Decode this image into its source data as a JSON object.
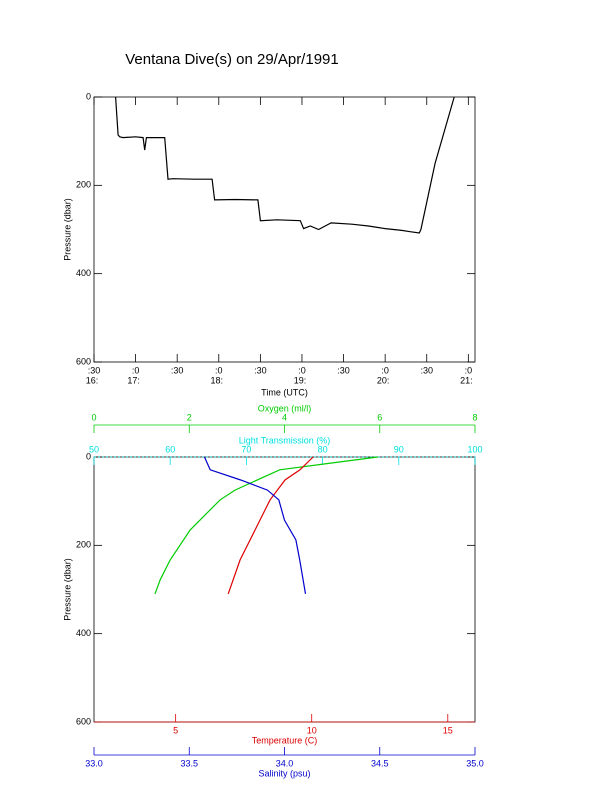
{
  "chart_data": [
    {
      "type": "line",
      "title": "Ventana Dive(s) on 29/Apr/1991",
      "xlabel": "Time (UTC)",
      "ylabel": "Pressure (dbar)",
      "xlim": [
        16.5,
        21.08
      ],
      "ylim": [
        0,
        600
      ],
      "y_reversed": true,
      "yticks": [
        0,
        200,
        400,
        600
      ],
      "xticks": [
        {
          "value": 16.5,
          "label": ":30",
          "hour": "16:"
        },
        {
          "value": 17,
          "label": ":0",
          "hour": "17:"
        },
        {
          "value": 17.5,
          "label": ":30"
        },
        {
          "value": 18,
          "label": ":0",
          "hour": "18:"
        },
        {
          "value": 18.5,
          "label": ":30"
        },
        {
          "value": 19,
          "label": ":0",
          "hour": "19:"
        },
        {
          "value": 19.5,
          "label": ":30"
        },
        {
          "value": 20,
          "label": ":0",
          "hour": "20:"
        },
        {
          "value": 20.5,
          "label": ":30"
        },
        {
          "value": 21,
          "label": ":0",
          "hour": "21:"
        }
      ],
      "series": [
        {
          "color": "#000000",
          "x": [
            16.76,
            16.79,
            16.81,
            16.85,
            17.0,
            17.09,
            17.11,
            17.13,
            17.35,
            17.39,
            17.45,
            17.7,
            17.92,
            17.95,
            18.2,
            18.47,
            18.5,
            18.7,
            18.98,
            19.02,
            19.1,
            19.2,
            19.35,
            19.6,
            19.8,
            20.0,
            20.2,
            20.3,
            20.41,
            20.43,
            20.6,
            20.83
          ],
          "values": [
            0,
            86,
            90,
            92,
            90,
            92,
            120,
            92,
            92,
            186,
            185,
            186,
            186,
            233,
            232,
            233,
            280,
            278,
            280,
            298,
            292,
            300,
            285,
            288,
            292,
            298,
            302,
            305,
            308,
            300,
            150,
            0
          ]
        }
      ]
    },
    {
      "type": "profile",
      "ylabel": "Pressure (dbar)",
      "ylim": [
        0,
        600
      ],
      "y_reversed": true,
      "yticks": [
        0,
        200,
        400,
        600
      ],
      "x_axes": [
        {
          "label": "Oxygen (ml/l)",
          "color": "#00cc00",
          "side": "top",
          "xlim": [
            0,
            8
          ],
          "xticks": [
            0,
            2,
            4,
            6,
            8
          ]
        },
        {
          "label": "Light Transmission (%)",
          "color": "#00e0e0",
          "side": "top",
          "xlim": [
            50,
            100
          ],
          "xticks": [
            50,
            60,
            70,
            80,
            90,
            100
          ]
        },
        {
          "label": "Temperature (C)",
          "color": "#dd0000",
          "side": "bottom",
          "xlim": [
            2,
            16
          ],
          "xticks": [
            5,
            10,
            15
          ]
        },
        {
          "label": "Salinity (psu)",
          "color": "#0000cc",
          "side": "bottom",
          "xlim": [
            33,
            35
          ],
          "xticks": [
            {
              "value": 33,
              "label": "33.0"
            },
            {
              "value": 33.5,
              "label": "33.5"
            },
            {
              "value": 34,
              "label": "34.0"
            },
            {
              "value": 34.5,
              "label": "34.5"
            },
            {
              "value": 35,
              "label": "35.0"
            }
          ]
        }
      ],
      "series": [
        {
          "axis": 0,
          "color": "#00cc00",
          "x": [
            5.96,
            5.17,
            3.9,
            2.96,
            2.65,
            2.02,
            1.6,
            1.39,
            1.28
          ],
          "values": [
            0,
            11,
            29,
            75,
            97,
            165,
            233,
            278,
            310
          ]
        },
        {
          "axis": 2,
          "color": "#dd0000",
          "x": [
            10.05,
            9.57,
            9.02,
            8.47,
            7.92,
            7.37,
            6.93
          ],
          "values": [
            0,
            29,
            52,
            97,
            165,
            233,
            310
          ]
        },
        {
          "axis": 3,
          "color": "#0000cc",
          "x": [
            33.58,
            33.61,
            33.77,
            33.91,
            33.97,
            34.0,
            34.06,
            34.08,
            34.11
          ],
          "values": [
            0,
            29,
            52,
            75,
            97,
            143,
            188,
            233,
            310
          ]
        }
      ]
    }
  ]
}
